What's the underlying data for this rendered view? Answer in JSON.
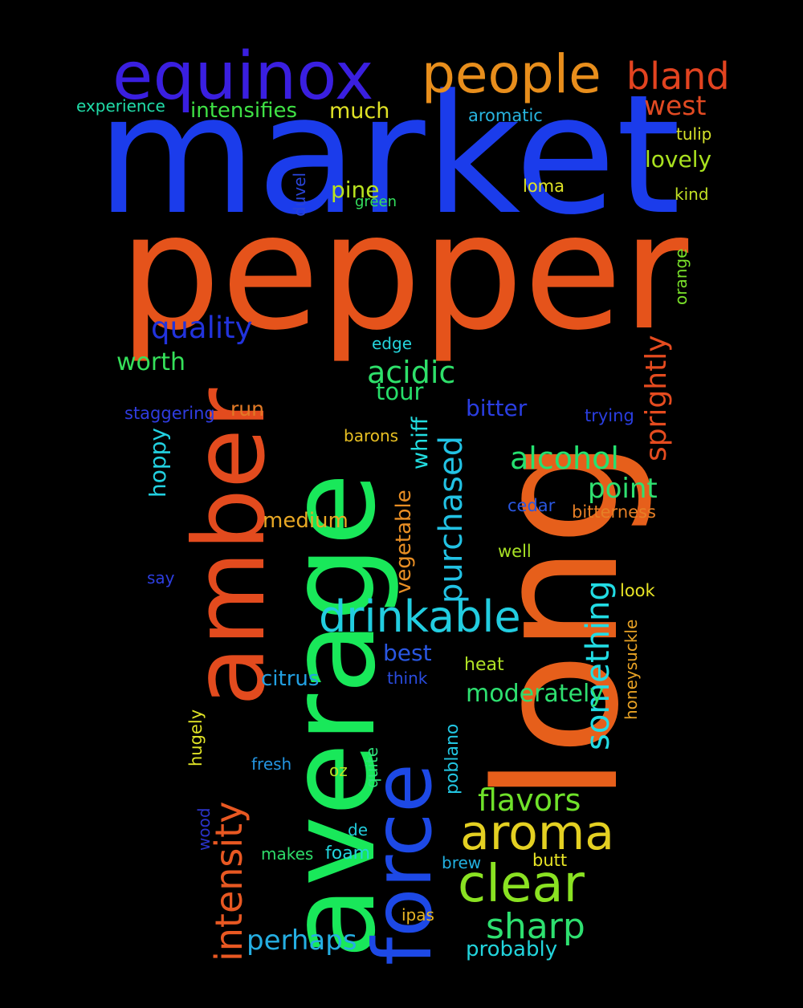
{
  "words": [
    {
      "text": "market",
      "color": "#1b3ceb"
    },
    {
      "text": "pepper",
      "color": "#e5531b"
    },
    {
      "text": "long",
      "color": "#e65f1b"
    },
    {
      "text": "average",
      "color": "#19e85a"
    },
    {
      "text": "amber",
      "color": "#e34b1e"
    },
    {
      "text": "force",
      "color": "#1d49e6"
    },
    {
      "text": "equinox",
      "color": "#3a1fe0"
    },
    {
      "text": "people",
      "color": "#e88e1c"
    },
    {
      "text": "bland",
      "color": "#e24320"
    },
    {
      "text": "west",
      "color": "#e24a22"
    },
    {
      "text": "experience",
      "color": "#20dca8"
    },
    {
      "text": "intensifies",
      "color": "#3fe145"
    },
    {
      "text": "much",
      "color": "#e0e226"
    },
    {
      "text": "aromatic",
      "color": "#28b5e0"
    },
    {
      "text": "tulip",
      "color": "#d6e22a"
    },
    {
      "text": "lovely",
      "color": "#aae21f"
    },
    {
      "text": "pine",
      "color": "#b9e21f"
    },
    {
      "text": "green",
      "color": "#34e05e"
    },
    {
      "text": "loma",
      "color": "#e0e426"
    },
    {
      "text": "kind",
      "color": "#c1e024"
    },
    {
      "text": "duvel",
      "color": "#2944d8"
    },
    {
      "text": "orange",
      "color": "#79e02a"
    },
    {
      "text": "quality",
      "color": "#2233dc"
    },
    {
      "text": "sprightly",
      "color": "#e54b1f"
    },
    {
      "text": "edge",
      "color": "#24d4dc"
    },
    {
      "text": "worth",
      "color": "#35e05a"
    },
    {
      "text": "acidic",
      "color": "#2ee06a"
    },
    {
      "text": "tour",
      "color": "#27dd6a"
    },
    {
      "text": "staggering",
      "color": "#2f3ce0"
    },
    {
      "text": "run",
      "color": "#e27a26"
    },
    {
      "text": "bitter",
      "color": "#2a3ee2"
    },
    {
      "text": "trying",
      "color": "#2a3ee0"
    },
    {
      "text": "barons",
      "color": "#e8c023"
    },
    {
      "text": "whiff",
      "color": "#22dde0"
    },
    {
      "text": "purchased",
      "color": "#22c2e4"
    },
    {
      "text": "alcohol",
      "color": "#25e170"
    },
    {
      "text": "hoppy",
      "color": "#22d0e0"
    },
    {
      "text": "point",
      "color": "#2fe070"
    },
    {
      "text": "vegetable",
      "color": "#e88e24"
    },
    {
      "text": "cedar",
      "color": "#2a57e0"
    },
    {
      "text": "bitterness",
      "color": "#e67f26"
    },
    {
      "text": "medium",
      "color": "#e8a825"
    },
    {
      "text": "something",
      "color": "#22dce4"
    },
    {
      "text": "well",
      "color": "#a8e225"
    },
    {
      "text": "say",
      "color": "#2d3ee0"
    },
    {
      "text": "drinkable",
      "color": "#22cde0"
    },
    {
      "text": "look",
      "color": "#e8e426"
    },
    {
      "text": "honeysuckle",
      "color": "#e8a225"
    },
    {
      "text": "best",
      "color": "#2a57e2"
    },
    {
      "text": "citrus",
      "color": "#22a0e2"
    },
    {
      "text": "think",
      "color": "#2a4ce0"
    },
    {
      "text": "heat",
      "color": "#b0e225"
    },
    {
      "text": "intensity",
      "color": "#e85822"
    },
    {
      "text": "moderately",
      "color": "#2ee070"
    },
    {
      "text": "hugely",
      "color": "#dfe226"
    },
    {
      "text": "poblano",
      "color": "#22c4e0"
    },
    {
      "text": "fresh",
      "color": "#2494e0"
    },
    {
      "text": "oz",
      "color": "#b9e225"
    },
    {
      "text": "quite",
      "color": "#2ee07a"
    },
    {
      "text": "flavors",
      "color": "#6fe22a"
    },
    {
      "text": "aroma",
      "color": "#e4d022"
    },
    {
      "text": "wood",
      "color": "#2a33c8"
    },
    {
      "text": "de",
      "color": "#22ccdc"
    },
    {
      "text": "makes",
      "color": "#2edc6a"
    },
    {
      "text": "foam",
      "color": "#22d4dc"
    },
    {
      "text": "clear",
      "color": "#8ae222"
    },
    {
      "text": "brew",
      "color": "#22b0e0"
    },
    {
      "text": "butt",
      "color": "#e8e426"
    },
    {
      "text": "sharp",
      "color": "#2ee070"
    },
    {
      "text": "perhaps",
      "color": "#25aee2"
    },
    {
      "text": "ipas",
      "color": "#e8b625"
    },
    {
      "text": "probably",
      "color": "#22d4dc"
    }
  ]
}
